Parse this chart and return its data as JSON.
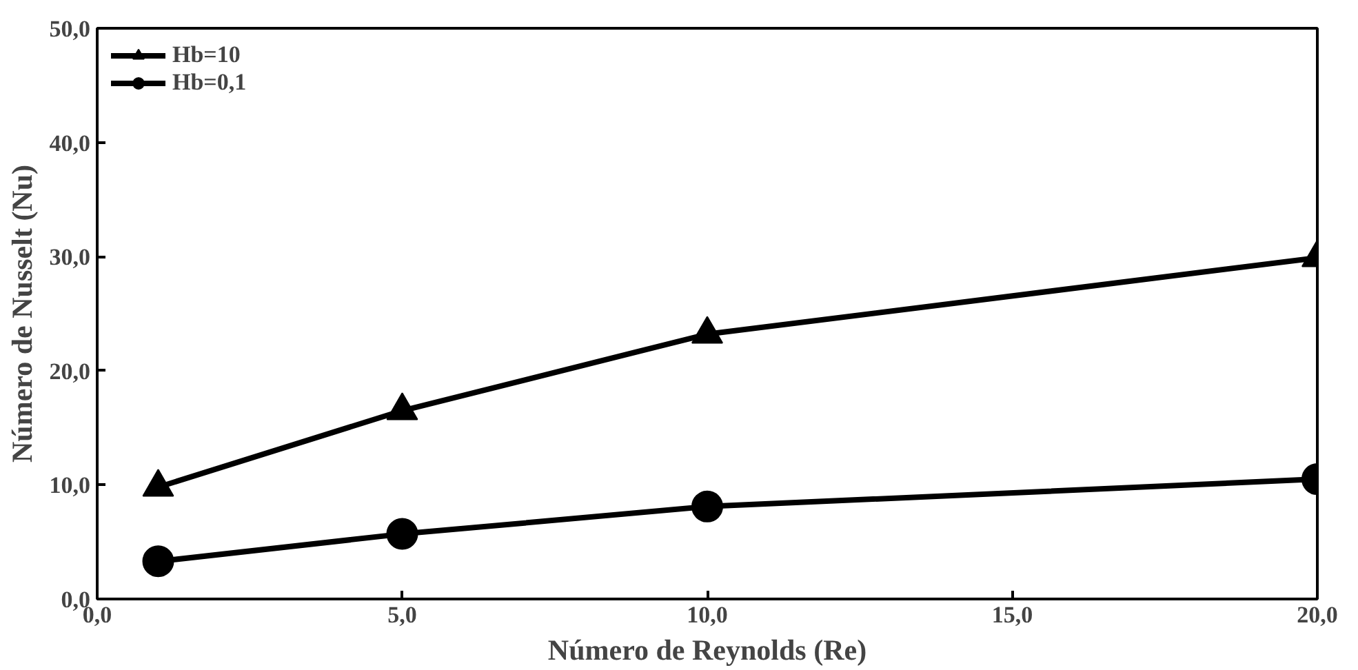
{
  "chart_data": {
    "type": "line",
    "xlabel": "Número de Reynolds (Re)",
    "ylabel": "Número de Nusselt (Nu)",
    "x": [
      1,
      5,
      10,
      20
    ],
    "series": [
      {
        "name": "Hb=10",
        "color": "#000000",
        "marker": "triangle",
        "values": [
          9.8,
          16.5,
          23.2,
          29.9
        ]
      },
      {
        "name": "Hb=0,1",
        "color": "#000000",
        "marker": "circle",
        "values": [
          3.3,
          5.7,
          8.1,
          10.5
        ]
      }
    ],
    "xlim": [
      0,
      20
    ],
    "ylim": [
      0,
      50
    ],
    "xticks": [
      {
        "value": 0,
        "label": "0,0"
      },
      {
        "value": 5,
        "label": "5,0"
      },
      {
        "value": 10,
        "label": "10,0"
      },
      {
        "value": 15,
        "label": "15,0"
      },
      {
        "value": 20,
        "label": "20,0"
      }
    ],
    "yticks": [
      {
        "value": 0,
        "label": "0,0"
      },
      {
        "value": 10,
        "label": "10,0"
      },
      {
        "value": 20,
        "label": "20,0"
      },
      {
        "value": 30,
        "label": "30,0"
      },
      {
        "value": 40,
        "label": "40,0"
      },
      {
        "value": 50,
        "label": "50,0"
      }
    ],
    "grid": false,
    "legend": "top left",
    "line_style": "solid"
  }
}
